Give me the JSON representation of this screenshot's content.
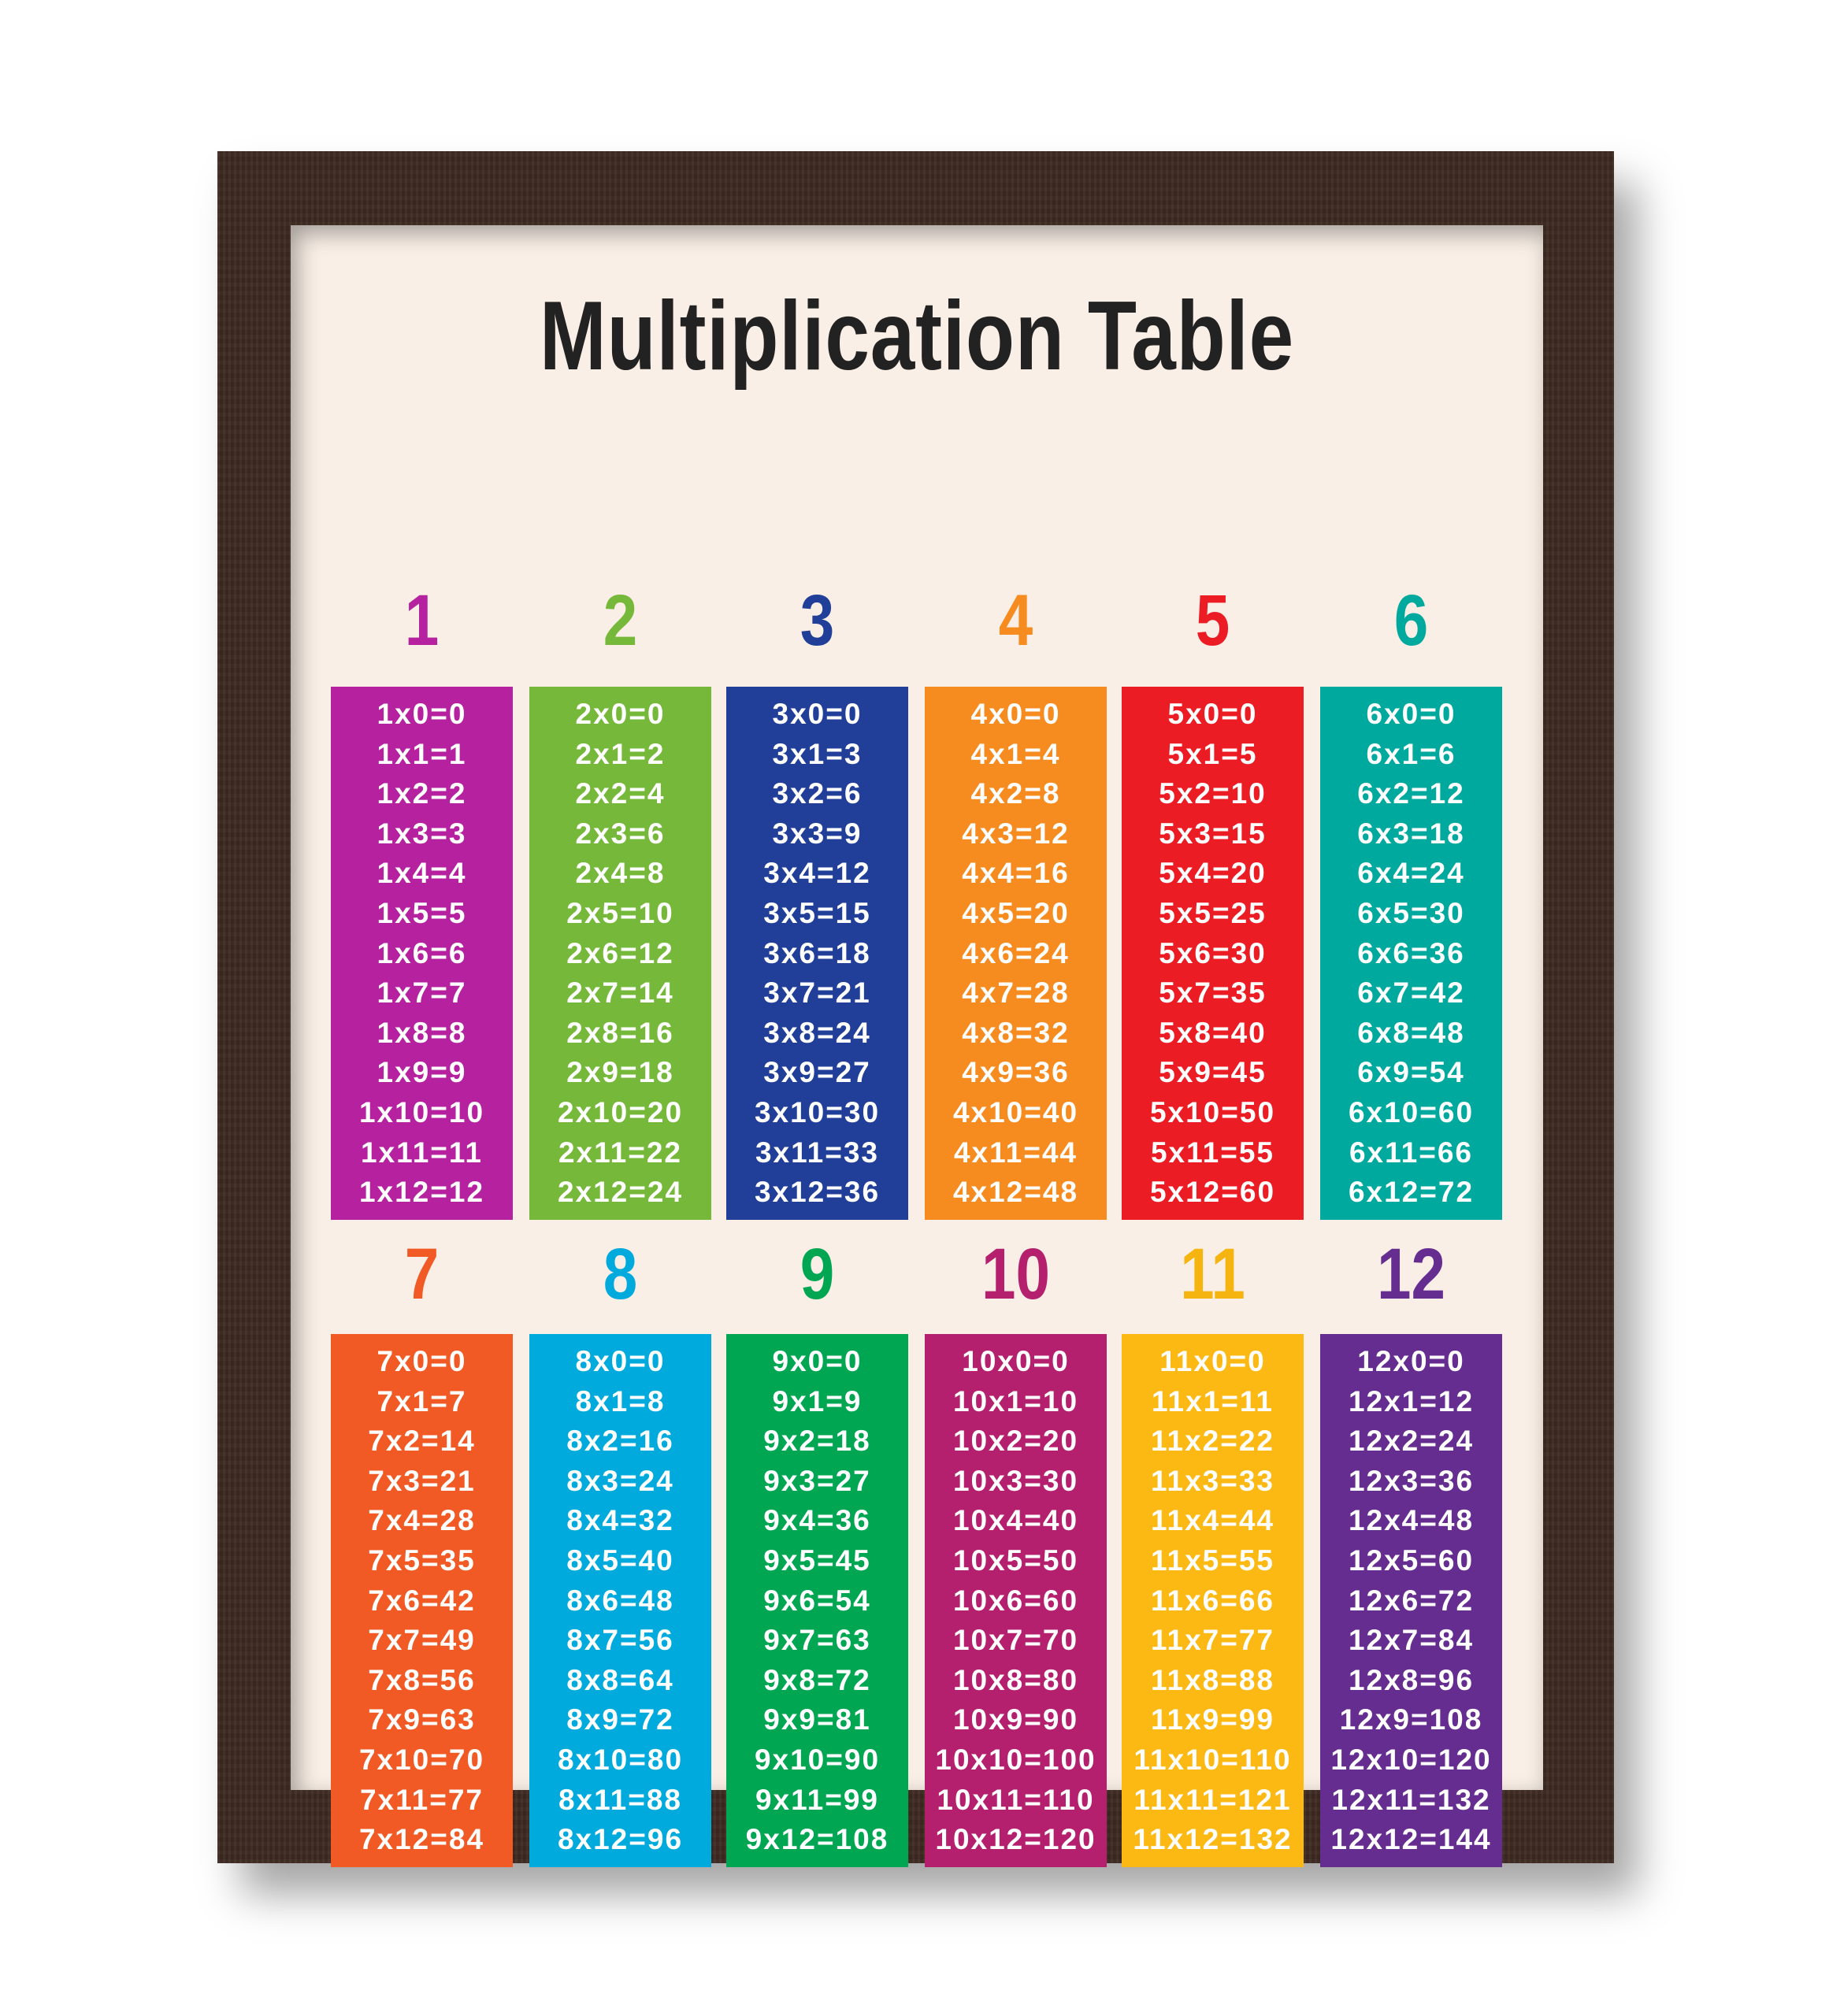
{
  "title": "Multiplication Table",
  "tables": [
    {
      "number": "1",
      "color": "#b5219f",
      "header_color": "#b5219f"
    },
    {
      "number": "2",
      "color": "#76b83a",
      "header_color": "#76b83a"
    },
    {
      "number": "3",
      "color": "#213f99",
      "header_color": "#213f99"
    },
    {
      "number": "4",
      "color": "#f68b1f",
      "header_color": "#f68b1f"
    },
    {
      "number": "5",
      "color": "#ec1c24",
      "header_color": "#ec1c24"
    },
    {
      "number": "6",
      "color": "#00a99d",
      "header_color": "#00a99d"
    },
    {
      "number": "7",
      "color": "#f15a24",
      "header_color": "#f15a24"
    },
    {
      "number": "8",
      "color": "#00aadd",
      "header_color": "#00aadd"
    },
    {
      "number": "9",
      "color": "#00a651",
      "header_color": "#00a651"
    },
    {
      "number": "10",
      "color": "#b5206e",
      "header_color": "#b5206e"
    },
    {
      "number": "11",
      "color": "#fcb813",
      "header_color": "#f5b40f"
    },
    {
      "number": "12",
      "color": "#662d91",
      "header_color": "#662d91"
    }
  ]
}
